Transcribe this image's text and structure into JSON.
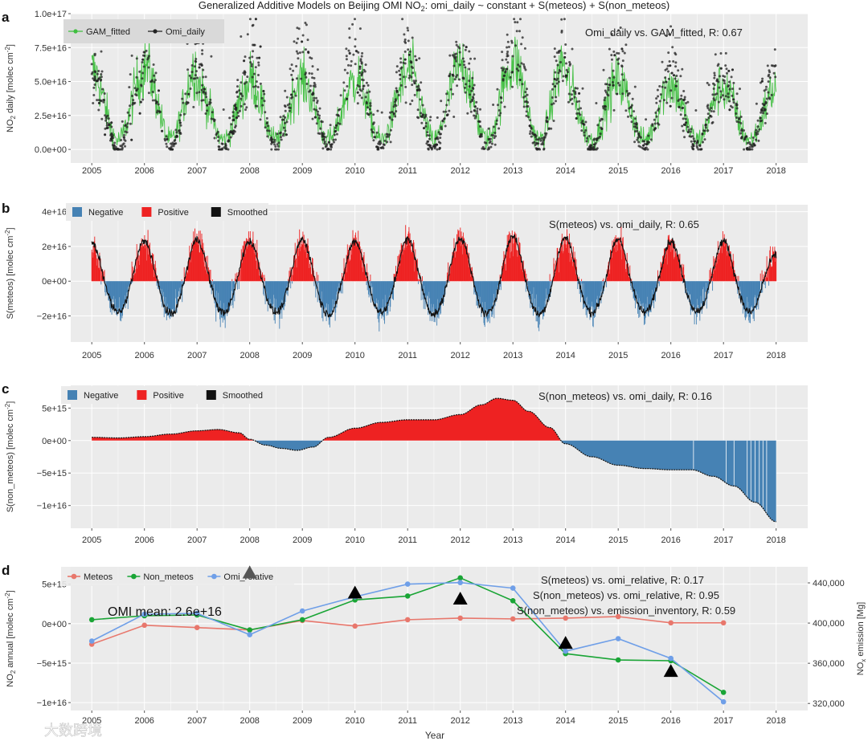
{
  "figure_title": "Generalized Additive Models on Beijing OMI NO",
  "figure_title_sub": "2",
  "figure_title_rest": ":  omi_daily ~ constant + S(meteos) + S(non_meteos)",
  "watermark": "大数跨境",
  "colors": {
    "panel_bg": "#ebebeb",
    "grid": "#ffffff",
    "gam": "#3fbf3f",
    "omi": "#222222",
    "neg": "#4682b4",
    "pos": "#ee2222",
    "smooth": "#111111",
    "meteos": "#e8776c",
    "non_meteos": "#1aa536",
    "omi_relative": "#6f9fe8"
  },
  "chart_data": [
    {
      "id": "a",
      "type": "line",
      "panel_label": "a",
      "title": "Generalized Additive Models on Beijing OMI NO2: omi_daily ~ constant + S(meteos) + S(non_meteos)",
      "xlabel": "",
      "ylabel": "NO2 daily [molec cm-2]",
      "ylabel_main": "NO",
      "ylabel_sub": "2",
      "ylabel_rest": " daily [molec cm",
      "ylabel_sup": "-2",
      "ylabel_end": "]",
      "xlim": [
        2004.6,
        2018.6
      ],
      "ylim": [
        -1e+16,
        1e+17
      ],
      "x_ticks": [
        2005,
        2006,
        2007,
        2008,
        2009,
        2010,
        2011,
        2012,
        2013,
        2014,
        2015,
        2016,
        2017,
        2018
      ],
      "y_ticks": [
        0,
        2.5e+16,
        5e+16,
        7.5e+16,
        1e+17
      ],
      "y_tick_labels": [
        "0.0e+00",
        "2.5e+16",
        "5.0e+16",
        "7.5e+16",
        "1.0e+17"
      ],
      "legend": [
        "GAM_fitted",
        "Omi_daily"
      ],
      "annotation": "Omi_daily vs. GAM_fitted, R: 0.67",
      "series": [
        {
          "name": "GAM_fitted",
          "style": "seasonal",
          "x_range": [
            2005,
            2018
          ],
          "peak_values": [
            5.8e+16,
            6.2e+16,
            4.8e+16,
            5.2e+16,
            5e+16,
            5.4e+16,
            6e+16,
            6.3e+16,
            6.6e+16,
            5e+16,
            5e+16,
            4.7e+16,
            4.5e+16,
            4.3e+16
          ],
          "trough_value": 7000000000000000.0
        },
        {
          "name": "Omi_daily",
          "style": "scatter",
          "x_range": [
            2005,
            2018
          ],
          "peak_values": [
            7.5e+16,
            8.5e+16,
            7.8e+16,
            9.2e+16,
            9.3e+16,
            8.8e+16,
            9e+16,
            9.5e+16,
            9.5e+16,
            8.5e+16,
            8e+16,
            8e+16,
            7.5e+16,
            6e+16
          ],
          "trough_value": 2000000000000000.0
        }
      ]
    },
    {
      "id": "b",
      "type": "area",
      "panel_label": "b",
      "xlabel": "",
      "ylabel": "S(meteos) [molec cm-2]",
      "ylabel_main": "S(meteos) [molec cm",
      "ylabel_sup": "-2",
      "ylabel_end": "]",
      "xlim": [
        2004.6,
        2018.6
      ],
      "ylim": [
        -3.5e+16,
        4.4e+16
      ],
      "x_ticks": [
        2005,
        2006,
        2007,
        2008,
        2009,
        2010,
        2011,
        2012,
        2013,
        2014,
        2015,
        2016,
        2017,
        2018
      ],
      "y_ticks": [
        -2e+16,
        0,
        2e+16,
        4e+16
      ],
      "y_tick_labels": [
        "−2e+16",
        "0e+00",
        "2e+16",
        "4e+16"
      ],
      "legend": [
        "Negative",
        "Positive",
        "Smoothed"
      ],
      "annotation": "S(meteos) vs. omi_daily, R: 0.65",
      "series": [
        {
          "name": "Smoothed",
          "x_range": [
            2005,
            2018
          ],
          "winter_peaks": [
            2.2e+16,
            2.3e+16,
            2.4e+16,
            2.3e+16,
            2.4e+16,
            2.3e+16,
            2.4e+16,
            2.5e+16,
            2.6e+16,
            2.5e+16,
            2.4e+16,
            2.3e+16,
            2.3e+16,
            1.5e+16
          ],
          "summer_troughs": [
            -1.8e+16,
            -1.9e+16,
            -1.8e+16,
            -1.8e+16,
            -1.9e+16,
            -1.8e+16,
            -1.9e+16,
            -1.9e+16,
            -1.9e+16,
            -1.8e+16,
            -1.8e+16,
            -1.7e+16,
            -1.8e+16
          ]
        }
      ]
    },
    {
      "id": "c",
      "type": "area",
      "panel_label": "c",
      "xlabel": "",
      "ylabel": "S(non_meteos) [molec cm-2]",
      "ylabel_main": "S(non_meteos) [molec cm",
      "ylabel_sup": "-2",
      "ylabel_end": "]",
      "xlim": [
        2004.6,
        2018.6
      ],
      "ylim": [
        -1.35e+16,
        8500000000000000.0
      ],
      "x_ticks": [
        2005,
        2006,
        2007,
        2008,
        2009,
        2010,
        2011,
        2012,
        2013,
        2014,
        2015,
        2016,
        2017,
        2018
      ],
      "y_ticks": [
        -1e+16,
        -5000000000000000.0,
        0,
        5000000000000000.0
      ],
      "y_tick_labels": [
        "−1e+16",
        "−5e+15",
        "0e+00",
        "5e+15"
      ],
      "legend": [
        "Negative",
        "Positive",
        "Smoothed"
      ],
      "annotation": "S(non_meteos) vs. omi_daily, R: 0.16",
      "series": [
        {
          "name": "Smoothed",
          "x": [
            2005.0,
            2005.5,
            2006.0,
            2006.5,
            2007.0,
            2007.4,
            2007.8,
            2008.0,
            2008.3,
            2008.6,
            2008.9,
            2009.2,
            2009.5,
            2010.0,
            2010.5,
            2011.0,
            2011.5,
            2012.0,
            2012.4,
            2012.7,
            2013.0,
            2013.3,
            2013.7,
            2014.0,
            2014.5,
            2015.0,
            2015.5,
            2016.0,
            2016.4,
            2016.8,
            2017.2,
            2017.6,
            2018.0
          ],
          "y": [
            500000000000000.0,
            400000000000000.0,
            600000000000000.0,
            1000000000000000.0,
            1500000000000000.0,
            1700000000000000.0,
            1200000000000000.0,
            200000000000000.0,
            -700000000000000.0,
            -1200000000000000.0,
            -1500000000000000.0,
            -1000000000000000.0,
            500000000000000.0,
            1900000000000000.0,
            2800000000000000.0,
            3200000000000000.0,
            3200000000000000.0,
            4000000000000000.0,
            5500000000000000.0,
            6500000000000000.0,
            6200000000000000.0,
            4500000000000000.0,
            2000000000000000.0,
            -500000000000000.0,
            -2500000000000000.0,
            -3800000000000000.0,
            -4300000000000000.0,
            -4500000000000000.0,
            -4500000000000000.0,
            -5500000000000000.0,
            -7000000000000000.0,
            -9500000000000000.0,
            -1.25e+16
          ]
        }
      ]
    },
    {
      "id": "d",
      "type": "line",
      "panel_label": "d",
      "xlabel": "Year",
      "ylabel": "NO2 annual [molec cm-2]",
      "ylabel_main": "NO",
      "ylabel_sub": "2",
      "ylabel_rest": " annual [molec cm",
      "ylabel_sup": "-2",
      "ylabel_end": "]",
      "y2label": "NOx emission [Mg]",
      "y2label_main": "NO",
      "y2label_sub": "x",
      "y2label_rest": " emission [Mg]",
      "xlim": [
        2004.6,
        2018.6
      ],
      "ylim": [
        -1.1e+16,
        7200000000000000.0
      ],
      "y2lim": [
        313000,
        456000
      ],
      "x_ticks": [
        2005,
        2006,
        2007,
        2008,
        2009,
        2010,
        2011,
        2012,
        2013,
        2014,
        2015,
        2016,
        2017,
        2018
      ],
      "y_ticks": [
        -1e+16,
        -5000000000000000.0,
        0,
        5000000000000000.0
      ],
      "y_tick_labels": [
        "−1e+16",
        "−5e+15",
        "0e+00",
        "5e+15"
      ],
      "y2_ticks": [
        320000,
        360000,
        400000,
        440000
      ],
      "y2_tick_labels": [
        "320,000",
        "360,000",
        "400,000",
        "440,000"
      ],
      "legend": [
        "Meteos",
        "Non_meteos",
        "Omi_relative"
      ],
      "annotations": [
        "S(meteos) vs. omi_relative, R:  0.17",
        "S(non_meteos) vs. omi_relative, R:  0.95",
        "S(non_meteos) vs. emission_inventory, R:  0.59"
      ],
      "omi_mean": "OMI mean:  2.6e+16",
      "x": [
        2005,
        2006,
        2007,
        2008,
        2009,
        2010,
        2011,
        2012,
        2013,
        2014,
        2015,
        2016,
        2017
      ],
      "series": [
        {
          "name": "Meteos",
          "values": [
            -2600000000000000.0,
            -200000000000000.0,
            -500000000000000.0,
            -800000000000000.0,
            400000000000000.0,
            -300000000000000.0,
            500000000000000.0,
            700000000000000.0,
            600000000000000.0,
            700000000000000.0,
            900000000000000.0,
            100000000000000.0,
            100000000000000.0
          ]
        },
        {
          "name": "Non_meteos",
          "values": [
            500000000000000.0,
            1000000000000000.0,
            1100000000000000.0,
            -800000000000000.0,
            500000000000000.0,
            3000000000000000.0,
            3500000000000000.0,
            5800000000000000.0,
            2900000000000000.0,
            -3800000000000000.0,
            -4600000000000000.0,
            -4700000000000000.0,
            -8700000000000000.0
          ]
        },
        {
          "name": "Omi_relative",
          "values": [
            -2200000000000000.0,
            1200000000000000.0,
            1300000000000000.0,
            -1400000000000000.0,
            1600000000000000.0,
            3400000000000000.0,
            5000000000000000.0,
            5200000000000000.0,
            4500000000000000.0,
            -3500000000000000.0,
            -1900000000000000.0,
            -4400000000000000.0,
            -9900000000000000.0
          ]
        },
        {
          "name": "Emission_inventory",
          "axis": "y2",
          "marker": "triangle",
          "x": [
            2008,
            2010,
            2012,
            2014,
            2016
          ],
          "values": [
            450000,
            430000,
            424000,
            380000,
            352000
          ]
        }
      ]
    }
  ]
}
